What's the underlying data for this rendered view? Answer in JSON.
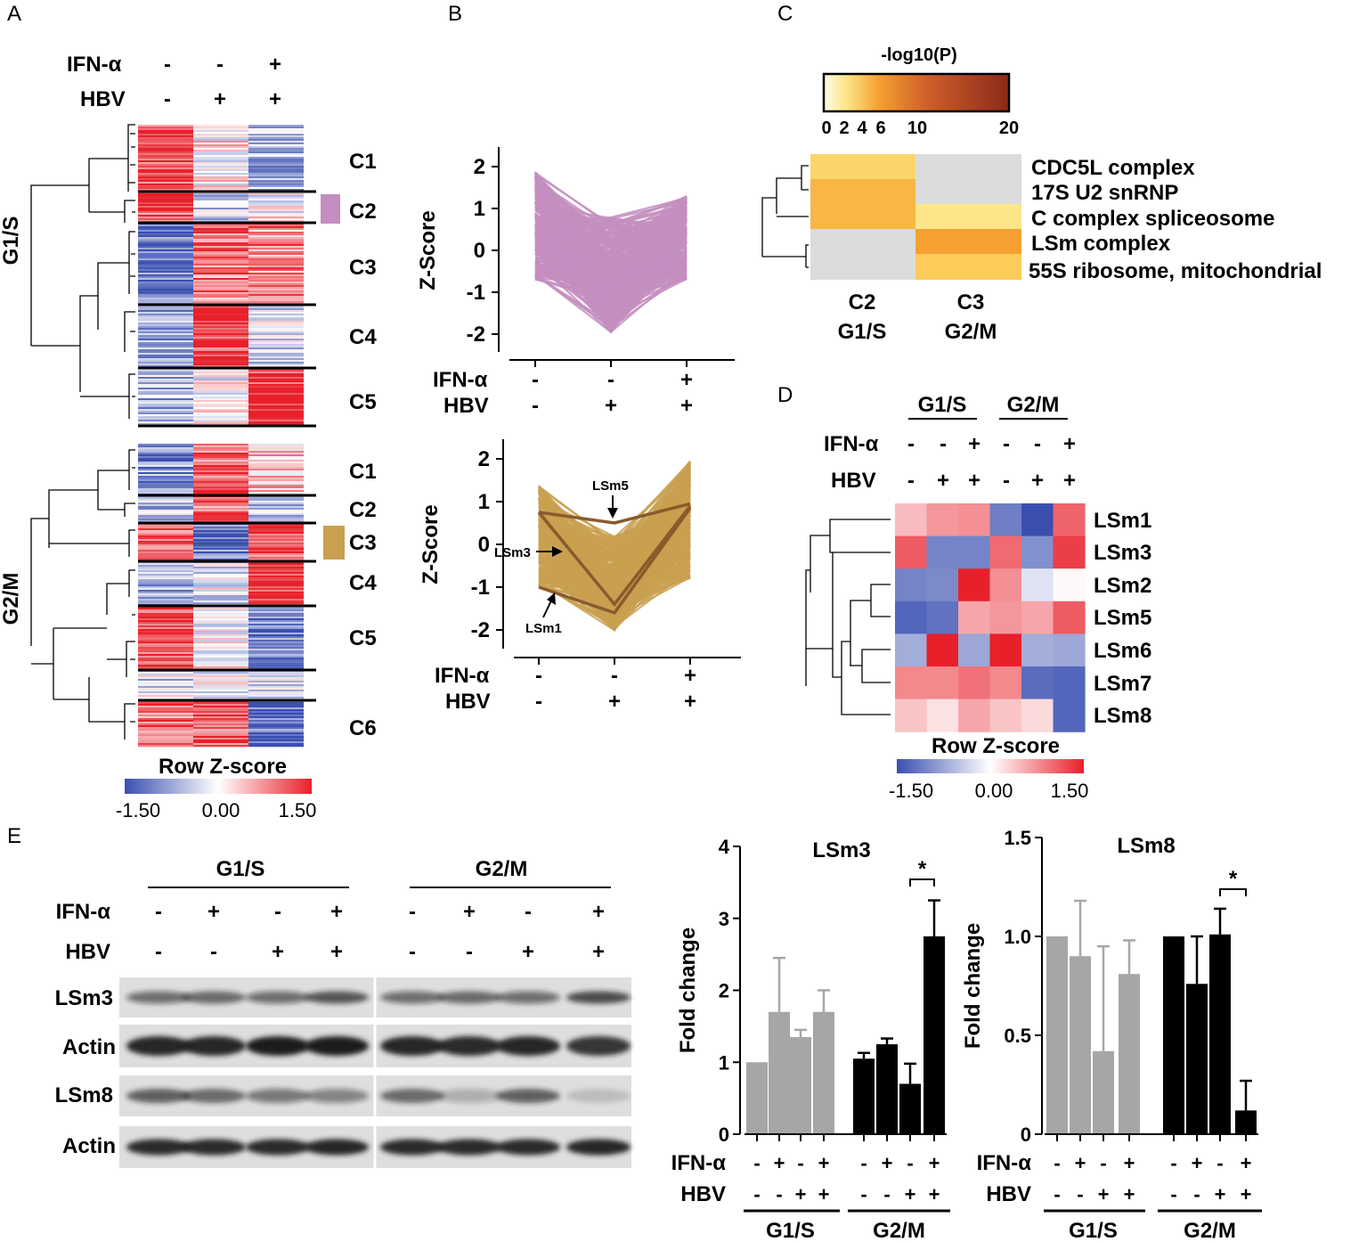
{
  "panels": {
    "A": "A",
    "B": "B",
    "C": "C",
    "D": "D",
    "E": "E"
  },
  "colors": {
    "blue": "#3a4fb0",
    "white": "#ffffff",
    "red": "#e8202a",
    "purple": "#c48ec0",
    "tan": "#c8a050",
    "darktan": "#8b5a2b",
    "gray": "#a6a6a6",
    "black": "#000000"
  },
  "sign": {
    "plus": "+",
    "minus": "-"
  },
  "panelA": {
    "ifn_label": "IFN-α",
    "hbv_label": "HBV",
    "ifn": [
      "-",
      "-",
      "+"
    ],
    "hbv": [
      "-",
      "+",
      "+"
    ],
    "groups": [
      {
        "label": "G1/S",
        "clusters": [
          "C1",
          "C2",
          "C3",
          "C4",
          "C5"
        ]
      },
      {
        "label": "G2/M",
        "clusters": [
          "C1",
          "C2",
          "C3",
          "C4",
          "C5",
          "C6"
        ]
      }
    ],
    "legend_title": "Row Z-score",
    "legend_ticks": [
      "-1.50",
      "0.00",
      "1.50"
    ]
  },
  "panelC": {
    "legend_title": "-log10(P)",
    "legend_ticks": [
      "0",
      "2",
      "4",
      "6",
      "10",
      "20"
    ],
    "terms": [
      "CDC5L complex",
      "17S U2 snRNP",
      "C complex spliceosome",
      "LSm complex",
      "55S ribosome, mitochondrial"
    ],
    "columns": [
      {
        "cluster": "C2",
        "phase": "G1/S"
      },
      {
        "cluster": "C3",
        "phase": "G2/M"
      }
    ]
  },
  "panelD": {
    "groups": [
      "G1/S",
      "G2/M"
    ],
    "ifn_label": "IFN-α",
    "hbv_label": "HBV",
    "ifn": [
      "-",
      "-",
      "+",
      "-",
      "-",
      "+"
    ],
    "hbv": [
      "-",
      "+",
      "+",
      "-",
      "+",
      "+"
    ],
    "legend_title": "Row Z-score",
    "legend_ticks": [
      "-1.50",
      "0.00",
      "1.50"
    ]
  },
  "panelE": {
    "groups": [
      "G1/S",
      "G2/M"
    ],
    "ifn_label": "IFN-α",
    "hbv_label": "HBV",
    "ifn": [
      "-",
      "+",
      "-",
      "+",
      "-",
      "+",
      "-",
      "+"
    ],
    "hbv": [
      "-",
      "-",
      "+",
      "+",
      "-",
      "-",
      "+",
      "+"
    ],
    "blots": [
      "LSm3",
      "Actin",
      "LSm8",
      "Actin"
    ]
  },
  "chart_data": [
    {
      "id": "panelB_top",
      "type": "line",
      "ylabel": "Z-Score",
      "ylim": [
        -2.5,
        2.5
      ],
      "yticks": [
        2,
        1,
        0,
        -1,
        -2
      ],
      "x_conditions": {
        "ifn_label": "IFN-α",
        "hbv_label": "HBV",
        "ifn": [
          "-",
          "-",
          "+"
        ],
        "hbv": [
          "-",
          "+",
          "+"
        ]
      },
      "envelope": {
        "upper": [
          1.9,
          0.8,
          1.3
        ],
        "lower": [
          -0.7,
          -2.0,
          -0.7
        ]
      },
      "color": "#c48ec0"
    },
    {
      "id": "panelB_bottom",
      "type": "line",
      "ylabel": "Z-Score",
      "ylim": [
        -2.5,
        2.5
      ],
      "yticks": [
        2,
        1,
        0,
        -1,
        -2
      ],
      "x_conditions": {
        "ifn_label": "IFN-α",
        "hbv_label": "HBV",
        "ifn": [
          "-",
          "-",
          "+"
        ],
        "hbv": [
          "-",
          "+",
          "+"
        ]
      },
      "envelope": {
        "upper": [
          1.4,
          0.2,
          1.95
        ],
        "lower": [
          -1.0,
          -2.05,
          -0.8
        ]
      },
      "series": [
        {
          "name": "LSm5",
          "values": [
            0.75,
            0.5,
            0.95
          ]
        },
        {
          "name": "LSm3",
          "values": [
            0.75,
            -1.4,
            0.9
          ]
        },
        {
          "name": "LSm1",
          "values": [
            -1.0,
            -1.6,
            0.85
          ]
        }
      ],
      "color": "#c8a050"
    },
    {
      "id": "panelC_heatmap",
      "type": "heatmap",
      "title": "-log10(P)",
      "rows": [
        "CDC5L complex",
        "17S U2 snRNP",
        "C complex spliceosome",
        "LSm complex",
        "55S ribosome, mitochondrial"
      ],
      "cols": [
        "C2 G1/S",
        "C3 G2/M"
      ],
      "values": [
        [
          2.5,
          null
        ],
        [
          4.0,
          null
        ],
        [
          4.0,
          1.5
        ],
        [
          null,
          5.0
        ],
        [
          null,
          3.0
        ]
      ],
      "range": [
        0,
        20
      ]
    },
    {
      "id": "panelD_heatmap",
      "type": "heatmap",
      "title": "Row Z-score",
      "rows": [
        "LSm1",
        "LSm3",
        "LSm2",
        "LSm5",
        "LSm6",
        "LSm7",
        "LSm8"
      ],
      "cols": [
        "G1/S -/-",
        "G1/S -/+",
        "G1/S +/+",
        "G2/M -/-",
        "G2/M -/+",
        "G2/M +/+"
      ],
      "values": [
        [
          0.45,
          0.7,
          0.75,
          -1.1,
          -1.5,
          1.05
        ],
        [
          1.1,
          -1.05,
          -1.05,
          1.0,
          -0.95,
          1.3
        ],
        [
          -1.05,
          -1.0,
          1.6,
          0.75,
          -0.25,
          0.05
        ],
        [
          -1.3,
          -1.2,
          0.6,
          0.7,
          0.6,
          1.1
        ],
        [
          -0.7,
          1.65,
          -0.75,
          1.6,
          -0.7,
          -0.75
        ],
        [
          0.8,
          0.8,
          0.95,
          0.8,
          -1.25,
          -1.3
        ],
        [
          0.4,
          0.2,
          0.6,
          0.4,
          0.25,
          -1.3
        ]
      ],
      "range": [
        -1.5,
        1.5
      ]
    },
    {
      "id": "panelE_LSm3",
      "type": "bar",
      "title": "LSm3",
      "ylabel": "Fold change",
      "ylim": [
        0,
        4
      ],
      "yticks": [
        "0",
        "1",
        "2",
        "3",
        "4"
      ],
      "categories": [
        "G1/S -/-",
        "G1/S +/-",
        "G1/S -/+",
        "G1/S +/+",
        "G2/M -/-",
        "G2/M +/-",
        "G2/M -/+",
        "G2/M +/+"
      ],
      "values": [
        1.0,
        1.7,
        1.35,
        1.7,
        1.05,
        1.25,
        0.7,
        2.75
      ],
      "errors": [
        0,
        0.75,
        0.1,
        0.3,
        0.08,
        0.08,
        0.28,
        0.5
      ],
      "groups": [
        "G1/S",
        "G2/M"
      ],
      "x_conditions": {
        "ifn_label": "IFN-α",
        "hbv_label": "HBV",
        "ifn": [
          "-",
          "+",
          "-",
          "+",
          "-",
          "+",
          "-",
          "+"
        ],
        "hbv": [
          "-",
          "-",
          "+",
          "+",
          "-",
          "-",
          "+",
          "+"
        ]
      },
      "significance": {
        "between": [
          6,
          7
        ],
        "label": "*"
      }
    },
    {
      "id": "panelE_LSm8",
      "type": "bar",
      "title": "LSm8",
      "ylabel": "Fold change",
      "ylim": [
        0,
        1.5
      ],
      "yticks": [
        "0",
        "0.5",
        "1.0",
        "1.5"
      ],
      "categories": [
        "G1/S -/-",
        "G1/S +/-",
        "G1/S -/+",
        "G1/S +/+",
        "G2/M -/-",
        "G2/M +/-",
        "G2/M -/+",
        "G2/M +/+"
      ],
      "values": [
        1.0,
        0.9,
        0.42,
        0.81,
        1.0,
        0.76,
        1.01,
        0.12
      ],
      "errors": [
        0,
        0.28,
        0.53,
        0.17,
        0,
        0.24,
        0.13,
        0.15
      ],
      "groups": [
        "G1/S",
        "G2/M"
      ],
      "x_conditions": {
        "ifn_label": "IFN-α",
        "hbv_label": "HBV",
        "ifn": [
          "-",
          "+",
          "-",
          "+",
          "-",
          "+",
          "-",
          "+"
        ],
        "hbv": [
          "-",
          "-",
          "+",
          "+",
          "-",
          "-",
          "+",
          "+"
        ]
      },
      "significance": {
        "between": [
          6,
          7
        ],
        "label": "*"
      }
    }
  ]
}
